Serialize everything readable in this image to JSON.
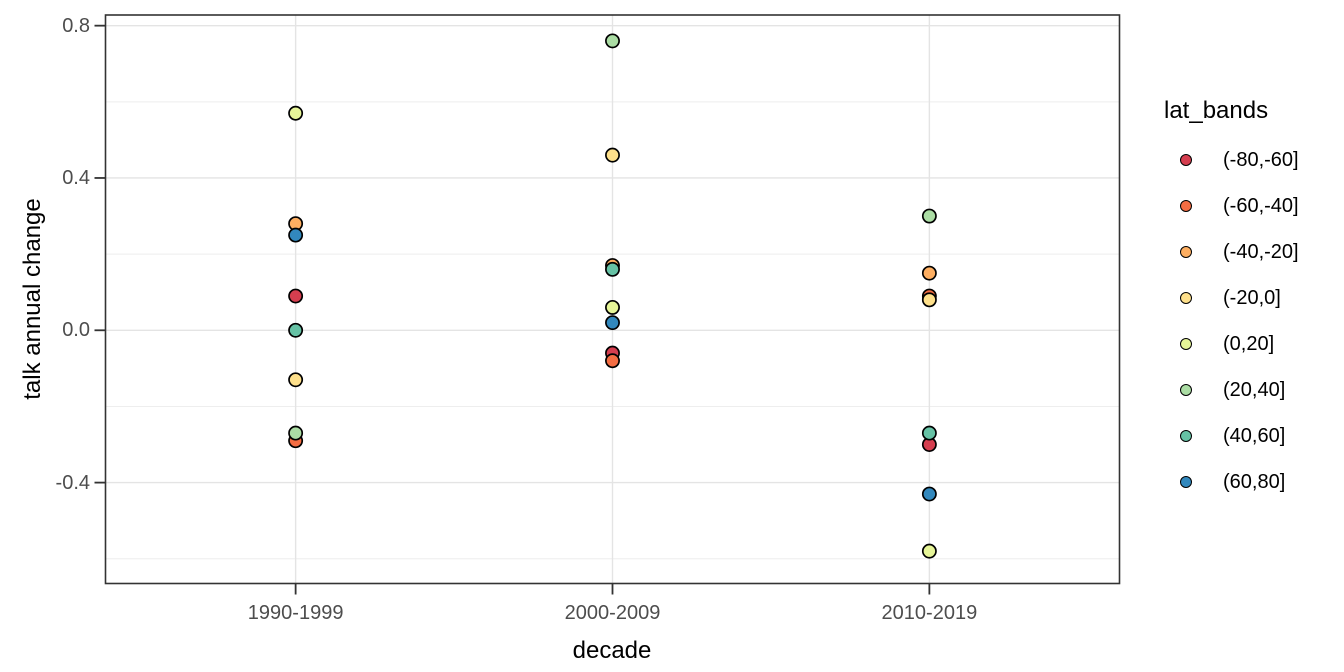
{
  "figure": {
    "y_axis": {
      "title": "talk annual change",
      "tick_labels": [
        "0.8",
        "0.4",
        "0.0",
        "-0.4"
      ],
      "tick_values": [
        0.8,
        0.4,
        0.0,
        -0.4
      ],
      "minor_tick_values": [
        0.6,
        0.2,
        -0.2,
        -0.6
      ],
      "range": [
        -0.665,
        0.828
      ],
      "text_color": "#4d4d4d"
    },
    "x_axis": {
      "title": "decade",
      "categories": [
        "1990-1999",
        "2000-2009",
        "2010-2019"
      ],
      "text_color": "#4d4d4d"
    },
    "legend": {
      "title": "lat_bands",
      "entries": [
        {
          "label": "(-80,-60]",
          "color": "#d53e4f"
        },
        {
          "label": "(-60,-40]",
          "color": "#f46d43"
        },
        {
          "label": "(-40,-20]",
          "color": "#fdae61"
        },
        {
          "label": "(-20,0]",
          "color": "#fee08b"
        },
        {
          "label": "(0,20]",
          "color": "#e6f598"
        },
        {
          "label": "(20,40]",
          "color": "#abdda4"
        },
        {
          "label": "(40,60]",
          "color": "#66c2a5"
        },
        {
          "label": "(60,80]",
          "color": "#3288bd"
        }
      ]
    },
    "colors": {
      "background": "#ffffff",
      "panel_border": "#333333",
      "grid_major": "#e4e4e4",
      "grid_minor": "#eeeeee",
      "axis_tick": "#333333",
      "point_outline": "#000000"
    }
  },
  "chart_data": {
    "type": "scatter",
    "title": "",
    "xlabel": "decade",
    "ylabel": "talk annual change",
    "categories": [
      "1990-1999",
      "2000-2009",
      "2010-2019"
    ],
    "series": [
      {
        "name": "(-80,-60]",
        "color": "#d53e4f",
        "values": [
          0.09,
          -0.06,
          -0.3
        ]
      },
      {
        "name": "(-60,-40]",
        "color": "#f46d43",
        "values": [
          -0.29,
          -0.08,
          0.09
        ]
      },
      {
        "name": "(-40,-20]",
        "color": "#fdae61",
        "values": [
          0.28,
          0.17,
          0.15
        ]
      },
      {
        "name": "(-20,0]",
        "color": "#fee08b",
        "values": [
          -0.13,
          0.46,
          0.08
        ]
      },
      {
        "name": "(0,20]",
        "color": "#e6f598",
        "values": [
          0.57,
          0.06,
          -0.58
        ]
      },
      {
        "name": "(20,40]",
        "color": "#abdda4",
        "values": [
          -0.27,
          0.76,
          0.3
        ]
      },
      {
        "name": "(40,60]",
        "color": "#66c2a5",
        "values": [
          0.0,
          0.16,
          -0.27
        ]
      },
      {
        "name": "(60,80]",
        "color": "#3288bd",
        "values": [
          0.25,
          0.02,
          -0.43
        ]
      }
    ],
    "ylim": [
      -0.665,
      0.828
    ],
    "y_major_ticks": [
      0.8,
      0.4,
      0.0,
      -0.4
    ],
    "y_minor_ticks": [
      0.6,
      0.2,
      -0.2,
      -0.6
    ],
    "grid": true,
    "legend_title": "lat_bands",
    "legend_position": "right"
  }
}
